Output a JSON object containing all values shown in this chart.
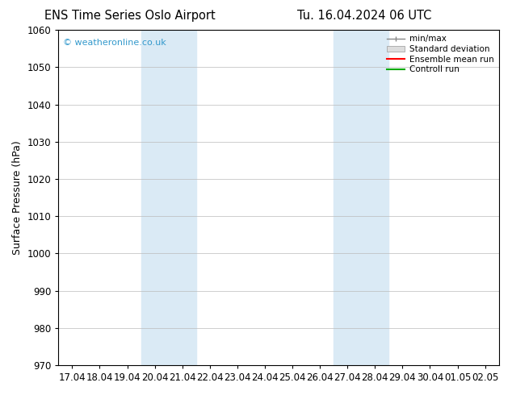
{
  "title_left": "ENS Time Series Oslo Airport",
  "title_right": "Tu. 16.04.2024 06 UTC",
  "ylabel": "Surface Pressure (hPa)",
  "ylim": [
    970,
    1060
  ],
  "yticks": [
    970,
    980,
    990,
    1000,
    1010,
    1020,
    1030,
    1040,
    1050,
    1060
  ],
  "xtick_labels": [
    "17.04",
    "18.04",
    "19.04",
    "20.04",
    "21.04",
    "22.04",
    "23.04",
    "24.04",
    "25.04",
    "26.04",
    "27.04",
    "28.04",
    "29.04",
    "30.04",
    "01.05",
    "02.05"
  ],
  "shade_bands": [
    {
      "xstart": 3,
      "xend": 5
    },
    {
      "xstart": 10,
      "xend": 12
    }
  ],
  "shade_color": "#daeaf5",
  "background_color": "#ffffff",
  "watermark": "© weatheronline.co.uk",
  "watermark_color": "#3399cc",
  "legend_labels": [
    "min/max",
    "Standard deviation",
    "Ensemble mean run",
    "Controll run"
  ],
  "legend_colors": [
    "#888888",
    "#cccccc",
    "#ff0000",
    "#00aa00"
  ],
  "grid_color": "#bbbbbb",
  "axis_label_fontsize": 9,
  "title_fontsize": 10.5,
  "tick_fontsize": 8.5
}
